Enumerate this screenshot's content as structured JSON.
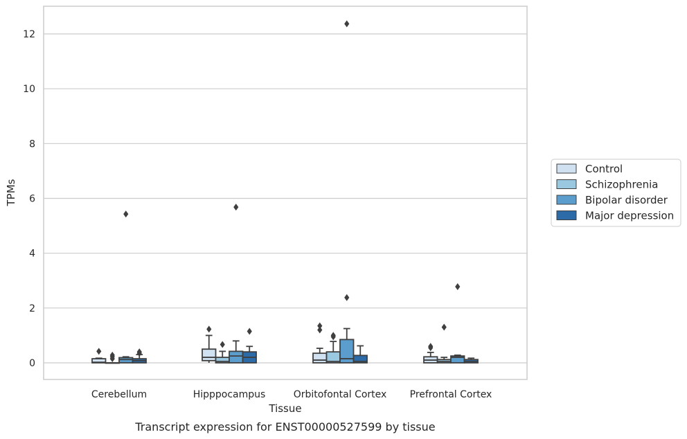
{
  "caption": "Transcript expression for ENST00000527599 by tissue",
  "chart_data": {
    "type": "box",
    "title": "",
    "xlabel": "Tissue",
    "ylabel": "TPMs",
    "ylim": [
      -0.6,
      13.0
    ],
    "yticks": [
      0,
      2,
      4,
      6,
      8,
      10,
      12
    ],
    "ytick_labels": [
      "0",
      "2",
      "4",
      "6",
      "8",
      "10",
      "12"
    ],
    "grid": "horizontal",
    "legend_position": "right",
    "categories": [
      "Cerebellum",
      "Hipppocampus",
      "Orbitofontal Cortex",
      "Prefrontal Cortex"
    ],
    "series": [
      {
        "name": "Control",
        "color": "#d0e1f1",
        "boxes": [
          {
            "q1": 0.0,
            "median": 0.02,
            "q3": 0.15,
            "whisker_low": 0.0,
            "whisker_high": 0.17,
            "outliers": [
              0.42
            ]
          },
          {
            "q1": 0.08,
            "median": 0.2,
            "q3": 0.5,
            "whisker_low": 0.0,
            "whisker_high": 1.0,
            "outliers": [
              1.23
            ]
          },
          {
            "q1": 0.0,
            "median": 0.1,
            "q3": 0.35,
            "whisker_low": 0.0,
            "whisker_high": 0.53,
            "outliers": [
              1.2,
              1.35
            ]
          },
          {
            "q1": 0.0,
            "median": 0.1,
            "q3": 0.22,
            "whisker_low": 0.0,
            "whisker_high": 0.38,
            "outliers": [
              0.55,
              0.6
            ]
          }
        ]
      },
      {
        "name": "Schizophrenia",
        "color": "#9ac8e0",
        "boxes": [
          {
            "q1": 0.0,
            "median": 0.0,
            "q3": 0.0,
            "whisker_low": 0.0,
            "whisker_high": 0.0,
            "outliers": [
              0.15,
              0.22,
              0.28
            ]
          },
          {
            "q1": 0.0,
            "median": 0.05,
            "q3": 0.2,
            "whisker_low": 0.0,
            "whisker_high": 0.42,
            "outliers": [
              0.67
            ]
          },
          {
            "q1": 0.0,
            "median": 0.05,
            "q3": 0.4,
            "whisker_low": 0.0,
            "whisker_high": 0.78,
            "outliers": [
              0.95,
              1.0
            ]
          },
          {
            "q1": 0.0,
            "median": 0.05,
            "q3": 0.12,
            "whisker_low": 0.0,
            "whisker_high": 0.2,
            "outliers": [
              1.3
            ]
          }
        ]
      },
      {
        "name": "Bipolar disorder",
        "color": "#5b9dcc",
        "boxes": [
          {
            "q1": 0.0,
            "median": 0.12,
            "q3": 0.19,
            "whisker_low": 0.0,
            "whisker_high": 0.22,
            "outliers": [
              5.43
            ]
          },
          {
            "q1": 0.0,
            "median": 0.25,
            "q3": 0.42,
            "whisker_low": 0.0,
            "whisker_high": 0.8,
            "outliers": [
              5.68
            ]
          },
          {
            "q1": 0.0,
            "median": 0.15,
            "q3": 0.85,
            "whisker_low": 0.0,
            "whisker_high": 1.25,
            "outliers": [
              2.38,
              12.37
            ]
          },
          {
            "q1": 0.0,
            "median": 0.2,
            "q3": 0.25,
            "whisker_low": 0.0,
            "whisker_high": 0.28,
            "outliers": [
              2.78
            ]
          }
        ]
      },
      {
        "name": "Major depression",
        "color": "#2c6aa8",
        "boxes": [
          {
            "q1": 0.0,
            "median": 0.08,
            "q3": 0.15,
            "whisker_low": 0.0,
            "whisker_high": 0.3,
            "outliers": [
              0.35,
              0.4
            ]
          },
          {
            "q1": 0.0,
            "median": 0.2,
            "q3": 0.4,
            "whisker_low": 0.0,
            "whisker_high": 0.6,
            "outliers": [
              1.15
            ]
          },
          {
            "q1": 0.0,
            "median": 0.05,
            "q3": 0.27,
            "whisker_low": 0.0,
            "whisker_high": 0.62,
            "outliers": []
          },
          {
            "q1": 0.0,
            "median": 0.05,
            "q3": 0.12,
            "whisker_low": 0.0,
            "whisker_high": 0.17,
            "outliers": []
          }
        ]
      }
    ]
  }
}
